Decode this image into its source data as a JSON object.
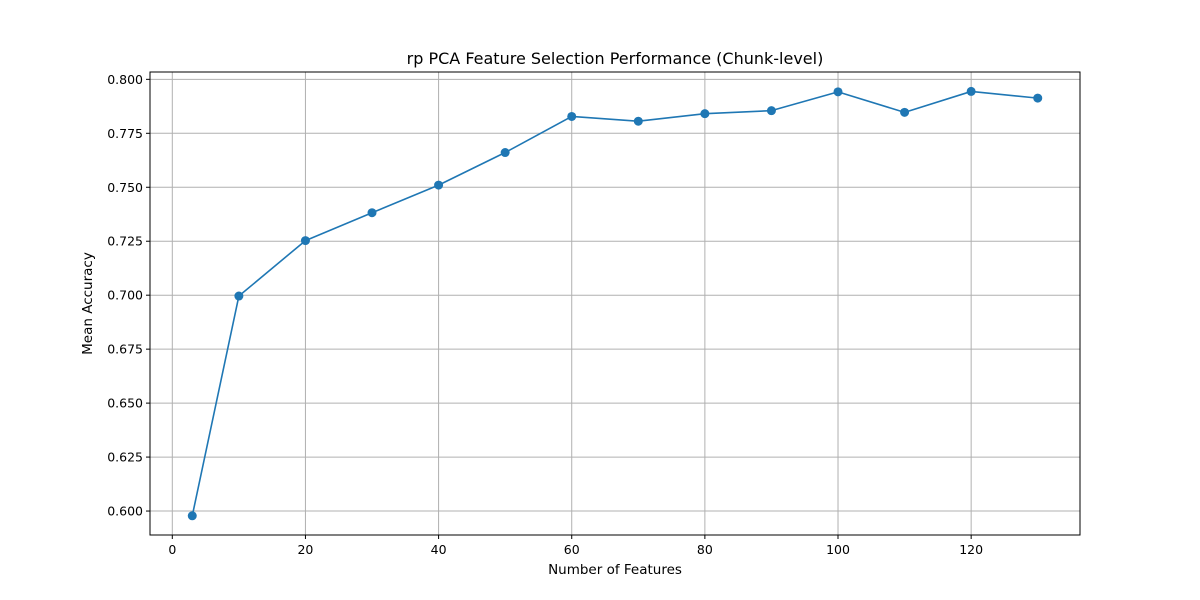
{
  "chart_data": {
    "type": "line",
    "title": "rp PCA Feature Selection Performance (Chunk-level)",
    "xlabel": "Number of Features",
    "ylabel": "Mean Accuracy",
    "xlim": [
      -3.35,
      136.35
    ],
    "ylim": [
      0.5889,
      0.8034
    ],
    "xticks": [
      0,
      20,
      40,
      60,
      80,
      100,
      120
    ],
    "xtick_labels": [
      "0",
      "20",
      "40",
      "60",
      "80",
      "100",
      "120"
    ],
    "yticks": [
      0.6,
      0.625,
      0.65,
      0.675,
      0.7,
      0.725,
      0.75,
      0.775,
      0.8
    ],
    "ytick_labels": [
      "0.600",
      "0.625",
      "0.650",
      "0.675",
      "0.700",
      "0.725",
      "0.750",
      "0.775",
      "0.800"
    ],
    "grid": true,
    "series": [
      {
        "color": "#1f77b4",
        "marker": "circle",
        "x": [
          3,
          10,
          20,
          30,
          40,
          50,
          60,
          70,
          80,
          90,
          100,
          110,
          120,
          130
        ],
        "y": [
          0.5978,
          0.6996,
          0.7253,
          0.7382,
          0.751,
          0.7661,
          0.7828,
          0.7806,
          0.7841,
          0.7855,
          0.7942,
          0.7847,
          0.7944,
          0.7913
        ]
      }
    ]
  }
}
